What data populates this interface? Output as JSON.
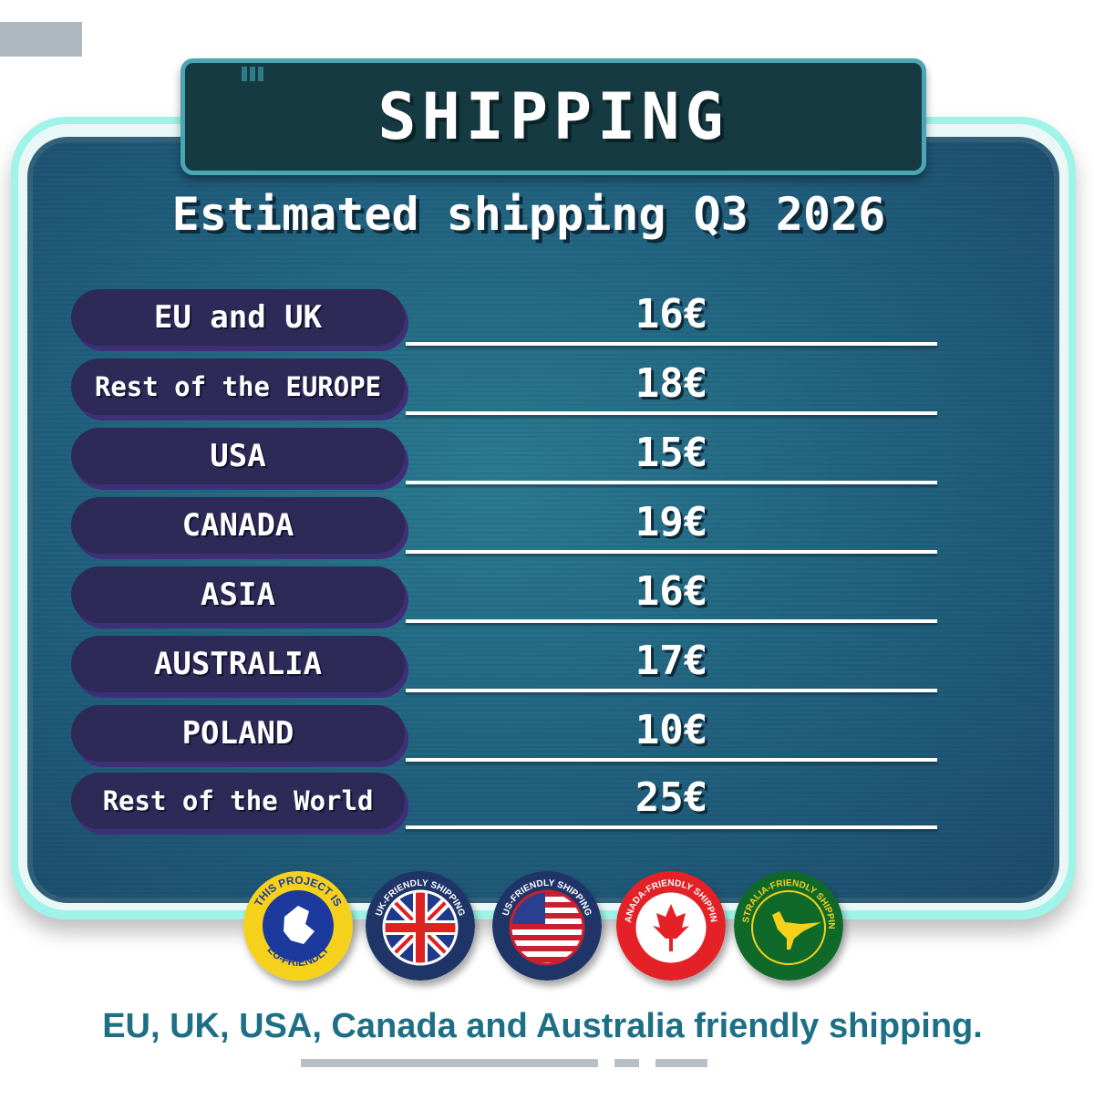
{
  "header": {
    "title": "SHIPPING",
    "subtitle": "Estimated shipping Q3 2026"
  },
  "rates": [
    {
      "region": "EU and UK",
      "price": "16€"
    },
    {
      "region": "Rest of the EUROPE",
      "price": "18€"
    },
    {
      "region": "USA",
      "price": "15€"
    },
    {
      "region": "CANADA",
      "price": "19€"
    },
    {
      "region": "ASIA",
      "price": "16€"
    },
    {
      "region": "AUSTRALIA",
      "price": "17€"
    },
    {
      "region": "POLAND",
      "price": "10€"
    },
    {
      "region": "Rest of the World",
      "price": "25€"
    }
  ],
  "badges": [
    {
      "name": "eu-badge",
      "top_text": "THIS PROJECT IS",
      "bottom_text": "EU-FRIENDLY",
      "color": "#f5d11c"
    },
    {
      "name": "uk-badge",
      "text": "UK-FRIENDLY SHIPPING",
      "color": "#1f3568"
    },
    {
      "name": "us-badge",
      "text": "US-FRIENDLY SHIPPING",
      "color": "#1f3568"
    },
    {
      "name": "canada-badge",
      "text": "CANADA-FRIENDLY SHIPPING",
      "color": "#e32126"
    },
    {
      "name": "australia-badge",
      "text": "AUSTRALIA-FRIENDLY SHIPPING",
      "color": "#0f6a2a"
    }
  ],
  "footer": {
    "text": "EU, UK, USA, Canada and Australia friendly shipping."
  },
  "colors": {
    "panel": "#21607e",
    "pill": "#2d2a57",
    "title_bg": "#153a42",
    "footer_text": "#1d6f86"
  }
}
